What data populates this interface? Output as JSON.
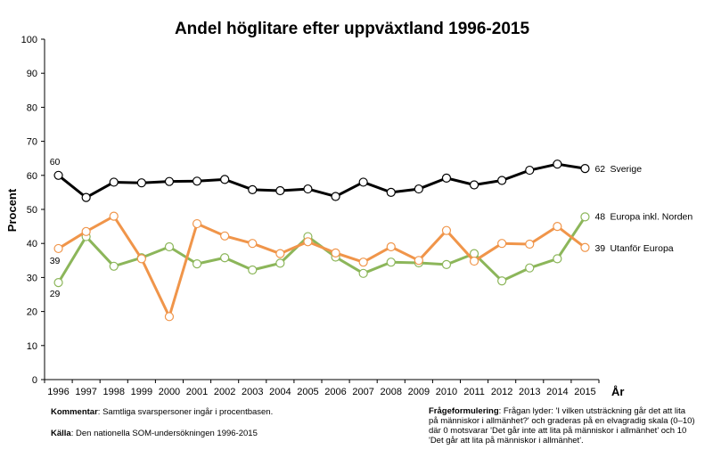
{
  "chart_data": {
    "type": "line",
    "title": "Andel höglitare efter uppväxtland 1996-2015",
    "ylabel": "Procent",
    "xlabel": "År",
    "ylim": [
      0,
      100
    ],
    "yticks": [
      0,
      10,
      20,
      30,
      40,
      50,
      60,
      70,
      80,
      90,
      100
    ],
    "grid": false,
    "categories": [
      "1996",
      "1997",
      "1998",
      "1999",
      "2000",
      "2001",
      "2002",
      "2003",
      "2004",
      "2005",
      "2006",
      "2007",
      "2008",
      "2009",
      "2010",
      "2011",
      "2012",
      "2013",
      "2014",
      "2015"
    ],
    "series": [
      {
        "name": "Sverige",
        "color": "#000000",
        "start_label": "60",
        "end_label": "62",
        "values": [
          60,
          53.5,
          58,
          57.8,
          58.2,
          58.3,
          58.8,
          55.8,
          55.5,
          56,
          53.8,
          58,
          55,
          56,
          59.2,
          57.2,
          58.5,
          61.5,
          63.3,
          62
        ]
      },
      {
        "name": "Europa inkl. Norden",
        "color": "#8cb65a",
        "start_label": "29",
        "end_label": "48",
        "values": [
          28.5,
          42,
          33.3,
          35.8,
          39,
          34,
          35.8,
          32.2,
          34.2,
          42,
          36,
          31.2,
          34.5,
          34.3,
          33.8,
          37,
          29,
          32.8,
          35.5,
          47.8
        ]
      },
      {
        "name": "Utanför Europa",
        "color": "#f0954a",
        "start_label": "39",
        "end_label": "39",
        "values": [
          38.5,
          43.5,
          48,
          35.5,
          18.5,
          45.8,
          42.2,
          40,
          37,
          40.5,
          37.2,
          34.5,
          39,
          35,
          43.8,
          34.8,
          40,
          39.8,
          45,
          38.8
        ]
      }
    ]
  },
  "footer": {
    "comment_label": "Kommentar",
    "comment_text": ": Samtliga svarspersoner ingår i procentbasen.",
    "source_label": "Källa",
    "source_text": ": Den nationella SOM-undersökningen 1996-2015",
    "question_label": "Frågeformulering",
    "question_text": ": Frågan lyder: 'I vilken utsträckning går det att lita på människor i allmänhet?' och graderas på en elvagradig skala (0–10) där 0 motsvarar 'Det går inte att lita på människor i allmänhet' och 10 'Det går att lita på människor i allmänhet'."
  }
}
